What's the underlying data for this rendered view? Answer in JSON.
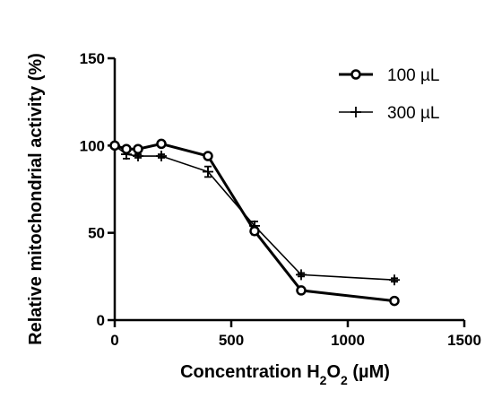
{
  "chart_data": {
    "type": "line",
    "title": "",
    "xlabel": {
      "prefix": "Concentration H",
      "sub1": "2",
      "mid": "O",
      "sub2": "2",
      "suffix": " (µM)"
    },
    "ylabel": "Relative mitochondrial activity (%)",
    "xlim": [
      0,
      1500
    ],
    "ylim": [
      0,
      150
    ],
    "xticks": [
      0,
      500,
      1000,
      1500
    ],
    "yticks": [
      0,
      50,
      100,
      150
    ],
    "xtick_labels": [
      "0",
      "500",
      "1000",
      "1500"
    ],
    "ytick_labels": [
      "0",
      "50",
      "100",
      "150"
    ],
    "grid": false,
    "legend_position": "top-right",
    "series": [
      {
        "name": "100 µL",
        "marker": "circle",
        "color": "#000000",
        "x": [
          0,
          50,
          100,
          200,
          400,
          600,
          800,
          1200
        ],
        "y": [
          100,
          98,
          98,
          101,
          94,
          51,
          17,
          11
        ],
        "err": [
          1.5,
          1.5,
          1.5,
          1.5,
          1.5,
          2,
          1.5,
          1.5
        ]
      },
      {
        "name": "300 µL",
        "marker": "plus",
        "color": "#000000",
        "x": [
          0,
          50,
          100,
          200,
          400,
          600,
          800,
          1200
        ],
        "y": [
          100,
          95,
          94,
          94,
          85,
          54,
          26,
          23
        ],
        "err": [
          1,
          2.5,
          1,
          1,
          3,
          2.5,
          1,
          1
        ]
      }
    ]
  }
}
